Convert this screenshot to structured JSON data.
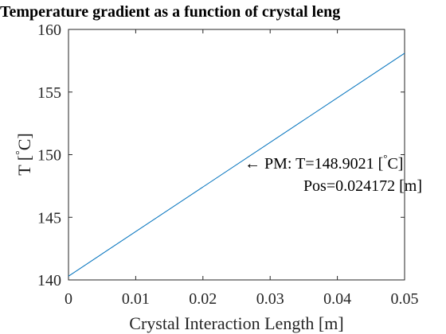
{
  "chart_data": {
    "type": "line",
    "title": "Temperature gradient as a function of crystal leng",
    "xlabel": "Crystal Interaction Length [m]",
    "ylabel_main": "T [",
    "ylabel_degree": "°",
    "ylabel_unit": "C]",
    "xlim": [
      0,
      0.05
    ],
    "ylim": [
      140,
      160
    ],
    "xticks": [
      0,
      0.01,
      0.02,
      0.03,
      0.04,
      0.05
    ],
    "xtick_labels": [
      "0",
      "0.01",
      "0.02",
      "0.03",
      "0.04",
      "0.05"
    ],
    "yticks": [
      140,
      145,
      150,
      155,
      160
    ],
    "ytick_labels": [
      "140",
      "145",
      "150",
      "155",
      "160"
    ],
    "grid": false,
    "series": [
      {
        "color": "#0072BD",
        "x": [
          0,
          0.05
        ],
        "y": [
          140.3,
          158.1
        ]
      }
    ],
    "annotation": {
      "line1_a": "← PM: T=148.9021 [",
      "line1_deg": "°",
      "line1_b": "C]",
      "line2": "Pos=0.024172 [m]",
      "x": 0.024172,
      "y": 148.9021
    }
  }
}
